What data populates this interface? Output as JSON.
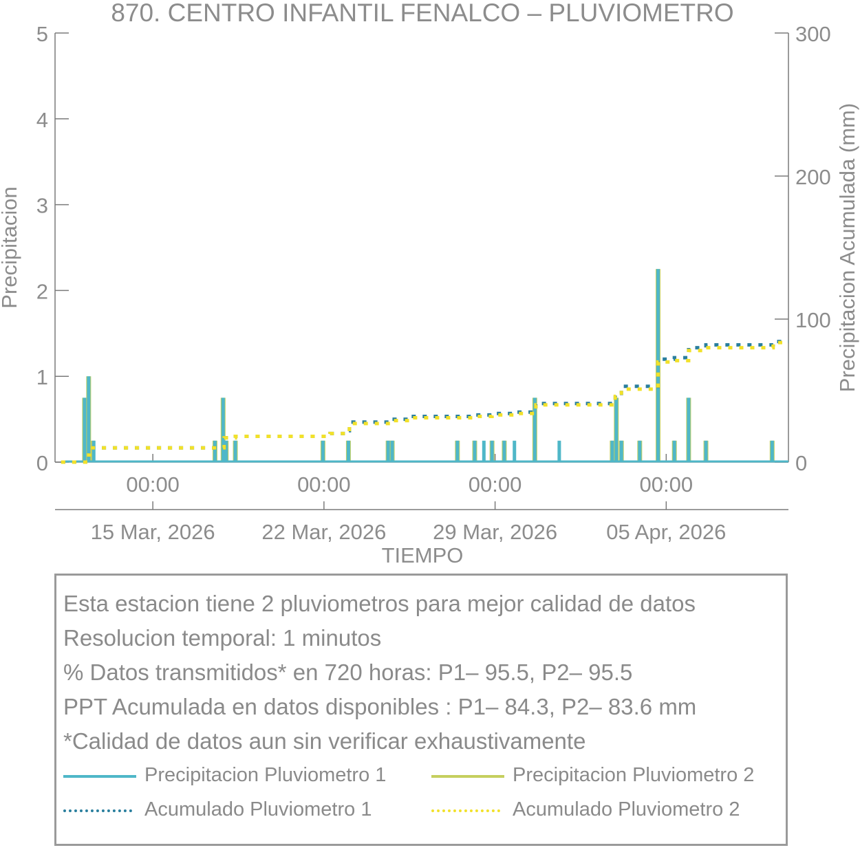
{
  "chart_data": {
    "type": "bar",
    "title": "870. CENTRO INFANTIL FENALCO – PLUVIOMETRO",
    "xlabel": "TIEMPO",
    "ylabel": "Precipitacion",
    "y2label": "Precipitacion Acumulada (mm)",
    "ylim": [
      0,
      5
    ],
    "y2lim": [
      0,
      300
    ],
    "yticks": [
      "0",
      "1",
      "2",
      "3",
      "4",
      "5"
    ],
    "y2ticks": [
      "0",
      "100",
      "200",
      "300"
    ],
    "xlim": [
      "2026-03-11",
      "2026-04-10"
    ],
    "xticks": [
      {
        "date": "2026-03-15",
        "time_label": "00:00",
        "date_label": "15 Mar, 2026"
      },
      {
        "date": "2026-03-22",
        "time_label": "00:00",
        "date_label": "22 Mar, 2026"
      },
      {
        "date": "2026-03-29",
        "time_label": "00:00",
        "date_label": "29 Mar, 2026"
      },
      {
        "date": "2026-04-05",
        "time_label": "00:00",
        "date_label": "05 Apr, 2026"
      }
    ],
    "grid": false,
    "series": [
      {
        "name": "Precipitacion Pluviometro 1",
        "color": "#4fb7c8",
        "style": "solid",
        "axis": "left",
        "points": [
          [
            "2026-03-12 05:00",
            0.75
          ],
          [
            "2026-03-12 09:00",
            1.0
          ],
          [
            "2026-03-12 14:00",
            0.25
          ],
          [
            "2026-03-17 13:00",
            0.25
          ],
          [
            "2026-03-17 21:00",
            0.75
          ],
          [
            "2026-03-18 00:00",
            0.25
          ],
          [
            "2026-03-18 09:00",
            0.25
          ],
          [
            "2026-03-21 23:00",
            0.25
          ],
          [
            "2026-03-23 00:00",
            0.25
          ],
          [
            "2026-03-24 15:00",
            0.25
          ],
          [
            "2026-03-24 19:00",
            0.25
          ],
          [
            "2026-03-27 11:00",
            0.25
          ],
          [
            "2026-03-28 04:00",
            0.25
          ],
          [
            "2026-03-28 13:00",
            0.25
          ],
          [
            "2026-03-28 21:00",
            0.25
          ],
          [
            "2026-03-29 09:00",
            0.25
          ],
          [
            "2026-03-29 19:00",
            0.25
          ],
          [
            "2026-03-30 15:00",
            0.75
          ],
          [
            "2026-03-31 15:00",
            0.25
          ],
          [
            "2026-04-02 19:00",
            0.25
          ],
          [
            "2026-04-02 23:00",
            0.75
          ],
          [
            "2026-04-03 04:00",
            0.25
          ],
          [
            "2026-04-03 22:00",
            0.25
          ],
          [
            "2026-04-04 16:00",
            2.25
          ],
          [
            "2026-04-05 08:00",
            0.25
          ],
          [
            "2026-04-05 22:00",
            0.75
          ],
          [
            "2026-04-06 15:00",
            0.25
          ],
          [
            "2026-04-09 08:00",
            0.25
          ]
        ]
      },
      {
        "name": "Precipitacion Pluviometro 2",
        "color": "#c5cf5e",
        "style": "solid",
        "axis": "left",
        "points": [
          [
            "2026-03-12 05:00",
            0.75
          ],
          [
            "2026-03-12 09:00",
            1.0
          ],
          [
            "2026-03-12 13:00",
            0.25
          ],
          [
            "2026-03-17 13:00",
            0.25
          ],
          [
            "2026-03-17 21:00",
            0.75
          ],
          [
            "2026-03-18 00:00",
            0.25
          ],
          [
            "2026-03-18 09:00",
            0.25
          ],
          [
            "2026-03-21 23:00",
            0.25
          ],
          [
            "2026-03-23 00:00",
            0.25
          ],
          [
            "2026-03-24 15:00",
            0.25
          ],
          [
            "2026-03-24 19:00",
            0.25
          ],
          [
            "2026-03-27 11:00",
            0.25
          ],
          [
            "2026-03-28 04:00",
            0.25
          ],
          [
            "2026-03-28 21:00",
            0.25
          ],
          [
            "2026-03-29 09:00",
            0.25
          ],
          [
            "2026-03-30 15:00",
            0.75
          ],
          [
            "2026-04-02 19:00",
            0.25
          ],
          [
            "2026-04-02 23:00",
            0.75
          ],
          [
            "2026-04-03 04:00",
            0.25
          ],
          [
            "2026-04-03 22:00",
            0.25
          ],
          [
            "2026-04-04 16:00",
            2.25
          ],
          [
            "2026-04-05 08:00",
            0.25
          ],
          [
            "2026-04-05 22:00",
            0.75
          ],
          [
            "2026-04-06 15:00",
            0.25
          ],
          [
            "2026-04-09 08:00",
            0.25
          ]
        ]
      },
      {
        "name": "Acumulado Pluviometro 1",
        "color": "#2a7f9e",
        "style": "dotted",
        "axis": "right",
        "points": [
          [
            "2026-03-11 06:00",
            0
          ],
          [
            "2026-03-12 04:00",
            0
          ],
          [
            "2026-03-12 06:00",
            5
          ],
          [
            "2026-03-12 10:00",
            10
          ],
          [
            "2026-03-17 20:00",
            10
          ],
          [
            "2026-03-17 22:00",
            17
          ],
          [
            "2026-03-18 09:00",
            18
          ],
          [
            "2026-03-21 22:00",
            18
          ],
          [
            "2026-03-22 06:00",
            20
          ],
          [
            "2026-03-23 00:00",
            22
          ],
          [
            "2026-03-23 01:00",
            28
          ],
          [
            "2026-03-24 15:00",
            28
          ],
          [
            "2026-03-24 19:00",
            30
          ],
          [
            "2026-03-25 12:00",
            32
          ],
          [
            "2026-03-27 11:00",
            32
          ],
          [
            "2026-03-28 05:00",
            33
          ],
          [
            "2026-03-28 21:00",
            34
          ],
          [
            "2026-03-29 19:00",
            35
          ],
          [
            "2026-03-30 15:00",
            36
          ],
          [
            "2026-03-30 16:00",
            41
          ],
          [
            "2026-04-02 19:00",
            41
          ],
          [
            "2026-04-02 22:00",
            48
          ],
          [
            "2026-04-03 04:00",
            53
          ],
          [
            "2026-04-04 15:00",
            53
          ],
          [
            "2026-04-04 16:00",
            72
          ],
          [
            "2026-04-05 08:00",
            73
          ],
          [
            "2026-04-05 22:00",
            80
          ],
          [
            "2026-04-06 15:00",
            82
          ],
          [
            "2026-04-09 08:00",
            82
          ],
          [
            "2026-04-09 09:00",
            84.3
          ],
          [
            "2026-04-10 00:00",
            84.3
          ]
        ]
      },
      {
        "name": "Acumulado Pluviometro 2",
        "color": "#f2e12a",
        "style": "dotted",
        "axis": "right",
        "points": [
          [
            "2026-03-11 06:00",
            0
          ],
          [
            "2026-03-12 04:00",
            0
          ],
          [
            "2026-03-12 06:00",
            5
          ],
          [
            "2026-03-12 10:00",
            10
          ],
          [
            "2026-03-17 20:00",
            10
          ],
          [
            "2026-03-17 22:00",
            17
          ],
          [
            "2026-03-18 09:00",
            18
          ],
          [
            "2026-03-21 22:00",
            18
          ],
          [
            "2026-03-22 06:00",
            20
          ],
          [
            "2026-03-23 00:00",
            21
          ],
          [
            "2026-03-23 01:00",
            27
          ],
          [
            "2026-03-24 15:00",
            27
          ],
          [
            "2026-03-24 19:00",
            29
          ],
          [
            "2026-03-25 12:00",
            31
          ],
          [
            "2026-03-27 11:00",
            31
          ],
          [
            "2026-03-28 05:00",
            32
          ],
          [
            "2026-03-28 21:00",
            33
          ],
          [
            "2026-03-29 19:00",
            34
          ],
          [
            "2026-03-30 15:00",
            35
          ],
          [
            "2026-03-30 16:00",
            40
          ],
          [
            "2026-04-02 19:00",
            40
          ],
          [
            "2026-04-02 22:00",
            46
          ],
          [
            "2026-04-03 04:00",
            51
          ],
          [
            "2026-04-04 15:00",
            51
          ],
          [
            "2026-04-04 16:00",
            70
          ],
          [
            "2026-04-05 08:00",
            71
          ],
          [
            "2026-04-05 22:00",
            78
          ],
          [
            "2026-04-06 15:00",
            80
          ],
          [
            "2026-04-09 08:00",
            80
          ],
          [
            "2026-04-09 09:00",
            83.6
          ],
          [
            "2026-04-10 00:00",
            83.6
          ]
        ]
      }
    ]
  },
  "info": {
    "lines": [
      "Esta estacion tiene 2 pluviometros para mejor calidad de datos",
      "Resolucion temporal: 1 minutos",
      "% Datos transmitidos* en 720 horas: P1– 95.5, P2– 95.5",
      "PPT Acumulada en datos disponibles : P1– 84.3, P2– 83.6 mm",
      "*Calidad de datos aun sin verificar exhaustivamente"
    ]
  },
  "legend": {
    "items": [
      {
        "label": "Precipitacion Pluviometro 1",
        "color": "#4fb7c8",
        "style": "solid"
      },
      {
        "label": "Precipitacion Pluviometro 2",
        "color": "#c5cf5e",
        "style": "solid"
      },
      {
        "label": "Acumulado Pluviometro 1",
        "color": "#2a7f9e",
        "style": "dotted"
      },
      {
        "label": "Acumulado Pluviometro 2",
        "color": "#f2e12a",
        "style": "dotted"
      }
    ]
  }
}
